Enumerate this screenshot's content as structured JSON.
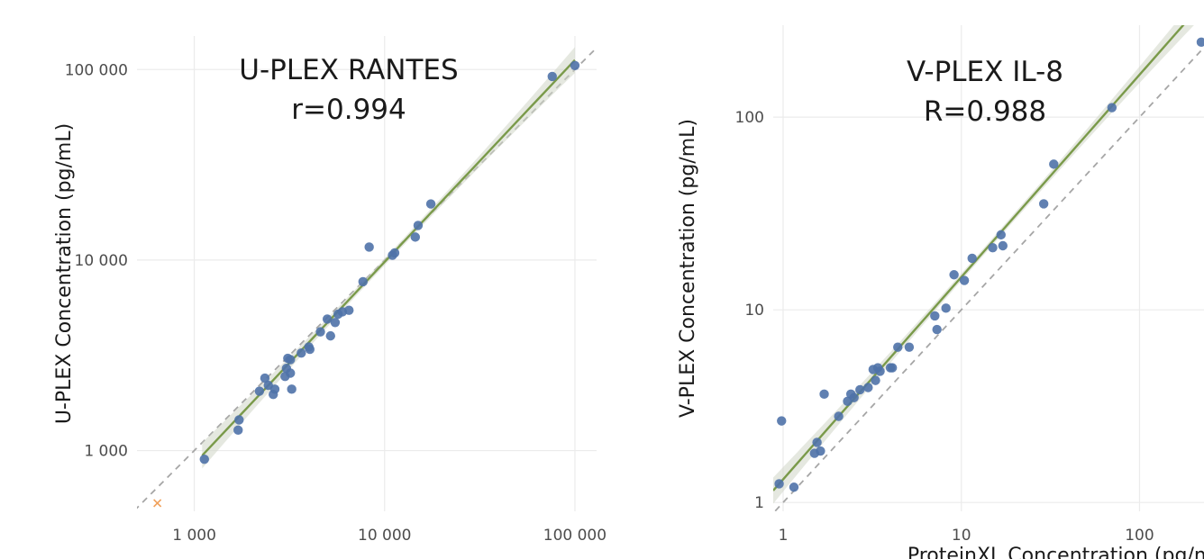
{
  "chart_data": [
    {
      "type": "scatter",
      "title": "U-PLEX RANTES",
      "subtitle": "r=0.994",
      "xlabel": "",
      "ylabel": "U-PLEX Concentration (pg/mL)",
      "xscale": "log",
      "yscale": "log",
      "xlim": [
        500,
        130000
      ],
      "ylim": [
        480,
        150000
      ],
      "x_ticks": [
        1000,
        10000,
        100000
      ],
      "x_tick_labels": [
        "1 000",
        "10 000",
        "100 000"
      ],
      "y_ticks": [
        1000,
        10000,
        100000
      ],
      "y_tick_labels": [
        "1 000",
        "10 000",
        "100 000"
      ],
      "grid": true,
      "reference_line": "identity (dashed)",
      "fit_line": {
        "slope": 1.06,
        "intercept_log10": -0.25,
        "x_range": [
          1100,
          100000
        ]
      },
      "colors": {
        "points": "#4f72a8",
        "fit": "#7a9a4a",
        "band": "#cfd6c6",
        "reference": "#a6a6a6",
        "outlier": "#f0a05a"
      },
      "points": [
        {
          "x": 1130,
          "y": 900
        },
        {
          "x": 1700,
          "y": 1280
        },
        {
          "x": 1720,
          "y": 1450
        },
        {
          "x": 2200,
          "y": 2050
        },
        {
          "x": 2350,
          "y": 2400
        },
        {
          "x": 2450,
          "y": 2200
        },
        {
          "x": 2600,
          "y": 1970
        },
        {
          "x": 2650,
          "y": 2100
        },
        {
          "x": 3000,
          "y": 2450
        },
        {
          "x": 3050,
          "y": 2700
        },
        {
          "x": 3100,
          "y": 3050
        },
        {
          "x": 3200,
          "y": 3000
        },
        {
          "x": 3200,
          "y": 2550
        },
        {
          "x": 3250,
          "y": 2100
        },
        {
          "x": 3650,
          "y": 3250
        },
        {
          "x": 4000,
          "y": 3500
        },
        {
          "x": 4050,
          "y": 3400
        },
        {
          "x": 4600,
          "y": 4200
        },
        {
          "x": 5000,
          "y": 4900
        },
        {
          "x": 5200,
          "y": 4000
        },
        {
          "x": 5500,
          "y": 4700
        },
        {
          "x": 5700,
          "y": 5200
        },
        {
          "x": 6000,
          "y": 5350
        },
        {
          "x": 6500,
          "y": 5450
        },
        {
          "x": 7700,
          "y": 7700
        },
        {
          "x": 8300,
          "y": 11700
        },
        {
          "x": 11000,
          "y": 10600
        },
        {
          "x": 11300,
          "y": 10900
        },
        {
          "x": 14500,
          "y": 13200
        },
        {
          "x": 15000,
          "y": 15200
        },
        {
          "x": 17500,
          "y": 19700
        },
        {
          "x": 76000,
          "y": 92000
        },
        {
          "x": 100000,
          "y": 105000
        }
      ],
      "outliers": [
        {
          "x": 640,
          "y": 530,
          "marker": "x"
        }
      ]
    },
    {
      "type": "scatter",
      "title": "V-PLEX IL-8",
      "subtitle": "R=0.988",
      "xlabel": "ProteinXL Concentration (pg/mL)",
      "ylabel": "V-PLEX Concentration (pg/mL)",
      "xscale": "log",
      "yscale": "log",
      "xlim": [
        0.88,
        230
      ],
      "ylim": [
        0.9,
        300
      ],
      "x_ticks": [
        1,
        10,
        100
      ],
      "x_tick_labels": [
        "1",
        "10",
        "100"
      ],
      "y_ticks": [
        1,
        10,
        100
      ],
      "y_tick_labels": [
        "1",
        "10",
        "100"
      ],
      "grid": true,
      "reference_line": "identity (dashed)",
      "fit_line": {
        "slope": 1.05,
        "intercept_log10": 0.12,
        "x_range": [
          0.88,
          230
        ]
      },
      "colors": {
        "points": "#4f72a8",
        "fit": "#7a9a4a",
        "band": "#cfd6c6",
        "reference": "#a6a6a6"
      },
      "points": [
        {
          "x": 0.95,
          "y": 1.25
        },
        {
          "x": 0.98,
          "y": 2.65
        },
        {
          "x": 1.15,
          "y": 1.2
        },
        {
          "x": 1.5,
          "y": 1.8
        },
        {
          "x": 1.55,
          "y": 2.05
        },
        {
          "x": 1.62,
          "y": 1.85
        },
        {
          "x": 1.7,
          "y": 3.65
        },
        {
          "x": 2.05,
          "y": 2.8
        },
        {
          "x": 2.3,
          "y": 3.35
        },
        {
          "x": 2.4,
          "y": 3.65
        },
        {
          "x": 2.5,
          "y": 3.5
        },
        {
          "x": 2.7,
          "y": 3.85
        },
        {
          "x": 3.0,
          "y": 3.95
        },
        {
          "x": 3.2,
          "y": 4.9
        },
        {
          "x": 3.3,
          "y": 4.3
        },
        {
          "x": 3.4,
          "y": 5.0
        },
        {
          "x": 3.5,
          "y": 4.8
        },
        {
          "x": 4.0,
          "y": 5.0
        },
        {
          "x": 4.1,
          "y": 5.0
        },
        {
          "x": 4.4,
          "y": 6.4
        },
        {
          "x": 5.1,
          "y": 6.4
        },
        {
          "x": 7.1,
          "y": 9.3
        },
        {
          "x": 7.3,
          "y": 7.9
        },
        {
          "x": 8.2,
          "y": 10.2
        },
        {
          "x": 9.1,
          "y": 15.2
        },
        {
          "x": 10.4,
          "y": 14.2
        },
        {
          "x": 11.5,
          "y": 18.5
        },
        {
          "x": 15.0,
          "y": 21.0
        },
        {
          "x": 16.7,
          "y": 24.5
        },
        {
          "x": 17.1,
          "y": 21.5
        },
        {
          "x": 29.0,
          "y": 35.5
        },
        {
          "x": 33.0,
          "y": 57.0
        },
        {
          "x": 70.0,
          "y": 112.0
        },
        {
          "x": 222.0,
          "y": 245.0
        }
      ],
      "outliers": []
    }
  ]
}
